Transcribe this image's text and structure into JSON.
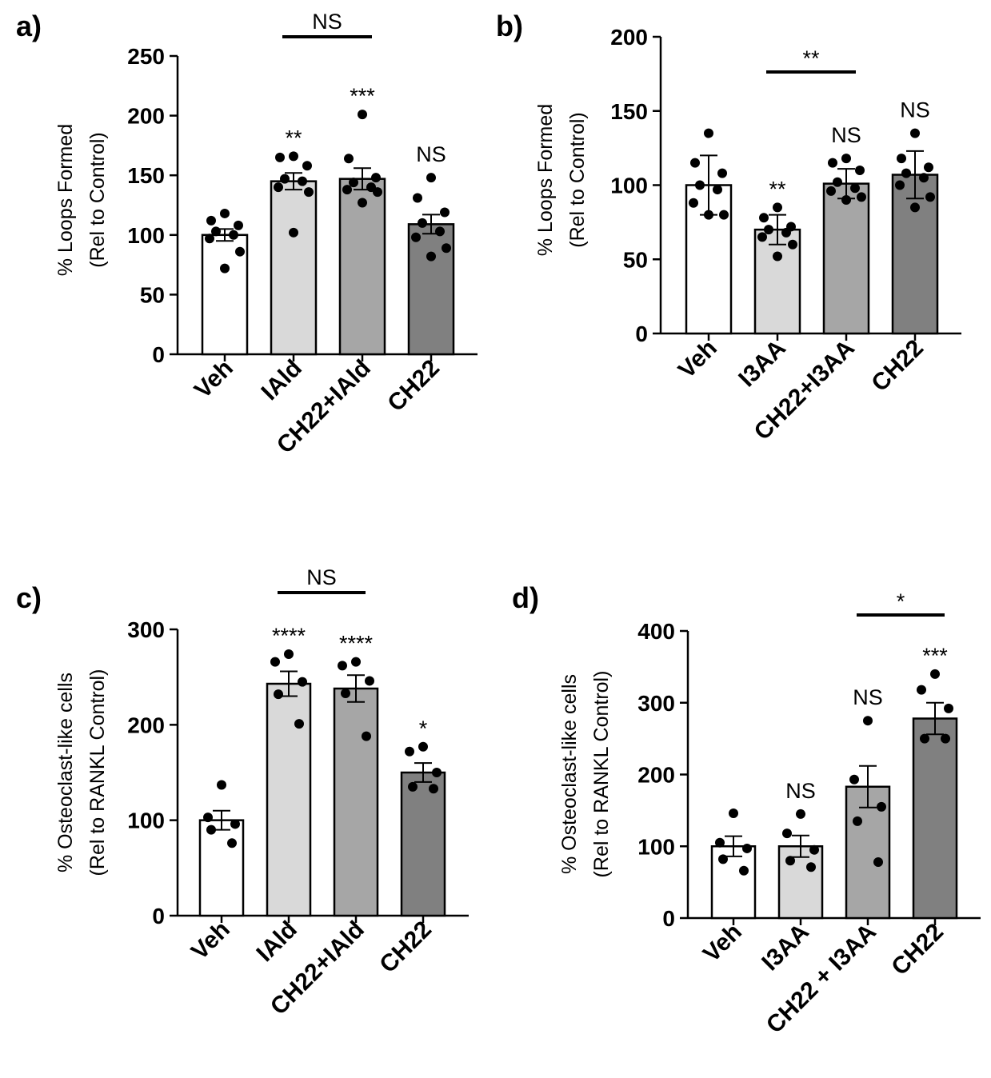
{
  "chart_data": [
    {
      "id": "a",
      "type": "bar",
      "panel_label": "a)",
      "ylabel": [
        "% Loops Formed",
        "(Rel to Control)"
      ],
      "ylim": [
        0,
        250
      ],
      "yticks": [
        0,
        50,
        100,
        150,
        200,
        250
      ],
      "categories": [
        "Veh",
        "IAld",
        "CH22+IAld",
        "CH22"
      ],
      "colors": [
        "#ffffff",
        "#d9d9d9",
        "#a6a6a6",
        "#808080"
      ],
      "values": [
        100,
        145,
        147,
        109
      ],
      "sem": [
        5,
        7,
        9,
        8
      ],
      "points": [
        [
          118,
          112,
          108,
          103,
          100,
          97,
          86,
          72
        ],
        [
          166,
          165,
          158,
          147,
          145,
          140,
          136,
          102
        ],
        [
          201,
          164,
          148,
          144,
          140,
          138,
          136,
          127
        ],
        [
          148,
          131,
          119,
          110,
          103,
          98,
          89,
          82
        ]
      ],
      "significance": [
        "",
        "**",
        "***",
        "NS"
      ],
      "comparisons": [
        {
          "from": 1,
          "to": 2,
          "label": "NS"
        }
      ]
    },
    {
      "id": "b",
      "type": "bar",
      "panel_label": "b)",
      "ylabel": [
        "% Loops Formed",
        "(Rel to Control)"
      ],
      "ylim": [
        0,
        200
      ],
      "yticks": [
        0,
        50,
        100,
        150,
        200
      ],
      "categories": [
        "Veh",
        "I3AA",
        "CH22+I3AA",
        "CH22"
      ],
      "colors": [
        "#ffffff",
        "#d9d9d9",
        "#a6a6a6",
        "#808080"
      ],
      "values": [
        100,
        70,
        101,
        107
      ],
      "sem": [
        20,
        10,
        10,
        16
      ],
      "points": [
        [
          135,
          115,
          108,
          100,
          97,
          88,
          80,
          80
        ],
        [
          85,
          78,
          72,
          70,
          68,
          65,
          60,
          52
        ],
        [
          118,
          115,
          110,
          102,
          98,
          96,
          92,
          90
        ],
        [
          135,
          118,
          112,
          108,
          105,
          100,
          92,
          85
        ]
      ],
      "significance": [
        "",
        "**",
        "NS",
        "NS"
      ],
      "comparisons": [
        {
          "from": 1,
          "to": 2,
          "label": "**"
        }
      ]
    },
    {
      "id": "c",
      "type": "bar",
      "panel_label": "c)",
      "ylabel": [
        "% Osteoclast-like cells",
        "(Rel to RANKL Control)"
      ],
      "ylim": [
        0,
        300
      ],
      "yticks": [
        0,
        100,
        200,
        300
      ],
      "categories": [
        "Veh",
        "IAld",
        "CH22+IAld",
        "CH22"
      ],
      "colors": [
        "#ffffff",
        "#d9d9d9",
        "#a6a6a6",
        "#808080"
      ],
      "values": [
        100,
        243,
        238,
        150
      ],
      "sem": [
        10,
        13,
        14,
        10
      ],
      "points": [
        [
          137,
          103,
          96,
          90,
          76
        ],
        [
          274,
          266,
          245,
          232,
          201
        ],
        [
          266,
          262,
          246,
          233,
          188
        ],
        [
          177,
          172,
          150,
          135,
          133
        ]
      ],
      "significance": [
        "",
        "****",
        "****",
        "*"
      ],
      "comparisons": [
        {
          "from": 1,
          "to": 2,
          "label": "NS"
        }
      ]
    },
    {
      "id": "d",
      "type": "bar",
      "panel_label": "d)",
      "ylabel": [
        "% Osteoclast-like cells",
        "(Rel to RANKL Control)"
      ],
      "ylim": [
        0,
        400
      ],
      "yticks": [
        0,
        100,
        200,
        300,
        400
      ],
      "categories": [
        "Veh",
        "I3AA",
        "CH22 + I3AA",
        "CH22"
      ],
      "colors": [
        "#ffffff",
        "#d9d9d9",
        "#a6a6a6",
        "#808080"
      ],
      "values": [
        100,
        100,
        183,
        278
      ],
      "sem": [
        14,
        15,
        29,
        22
      ],
      "points": [
        [
          146,
          105,
          97,
          82,
          66
        ],
        [
          145,
          118,
          95,
          80,
          71
        ],
        [
          275,
          193,
          155,
          135,
          78
        ],
        [
          340,
          318,
          292,
          250,
          250
        ]
      ],
      "significance": [
        "",
        "NS",
        "NS",
        "***"
      ],
      "comparisons": [
        {
          "from": 2,
          "to": 3,
          "label": "*"
        }
      ]
    }
  ]
}
